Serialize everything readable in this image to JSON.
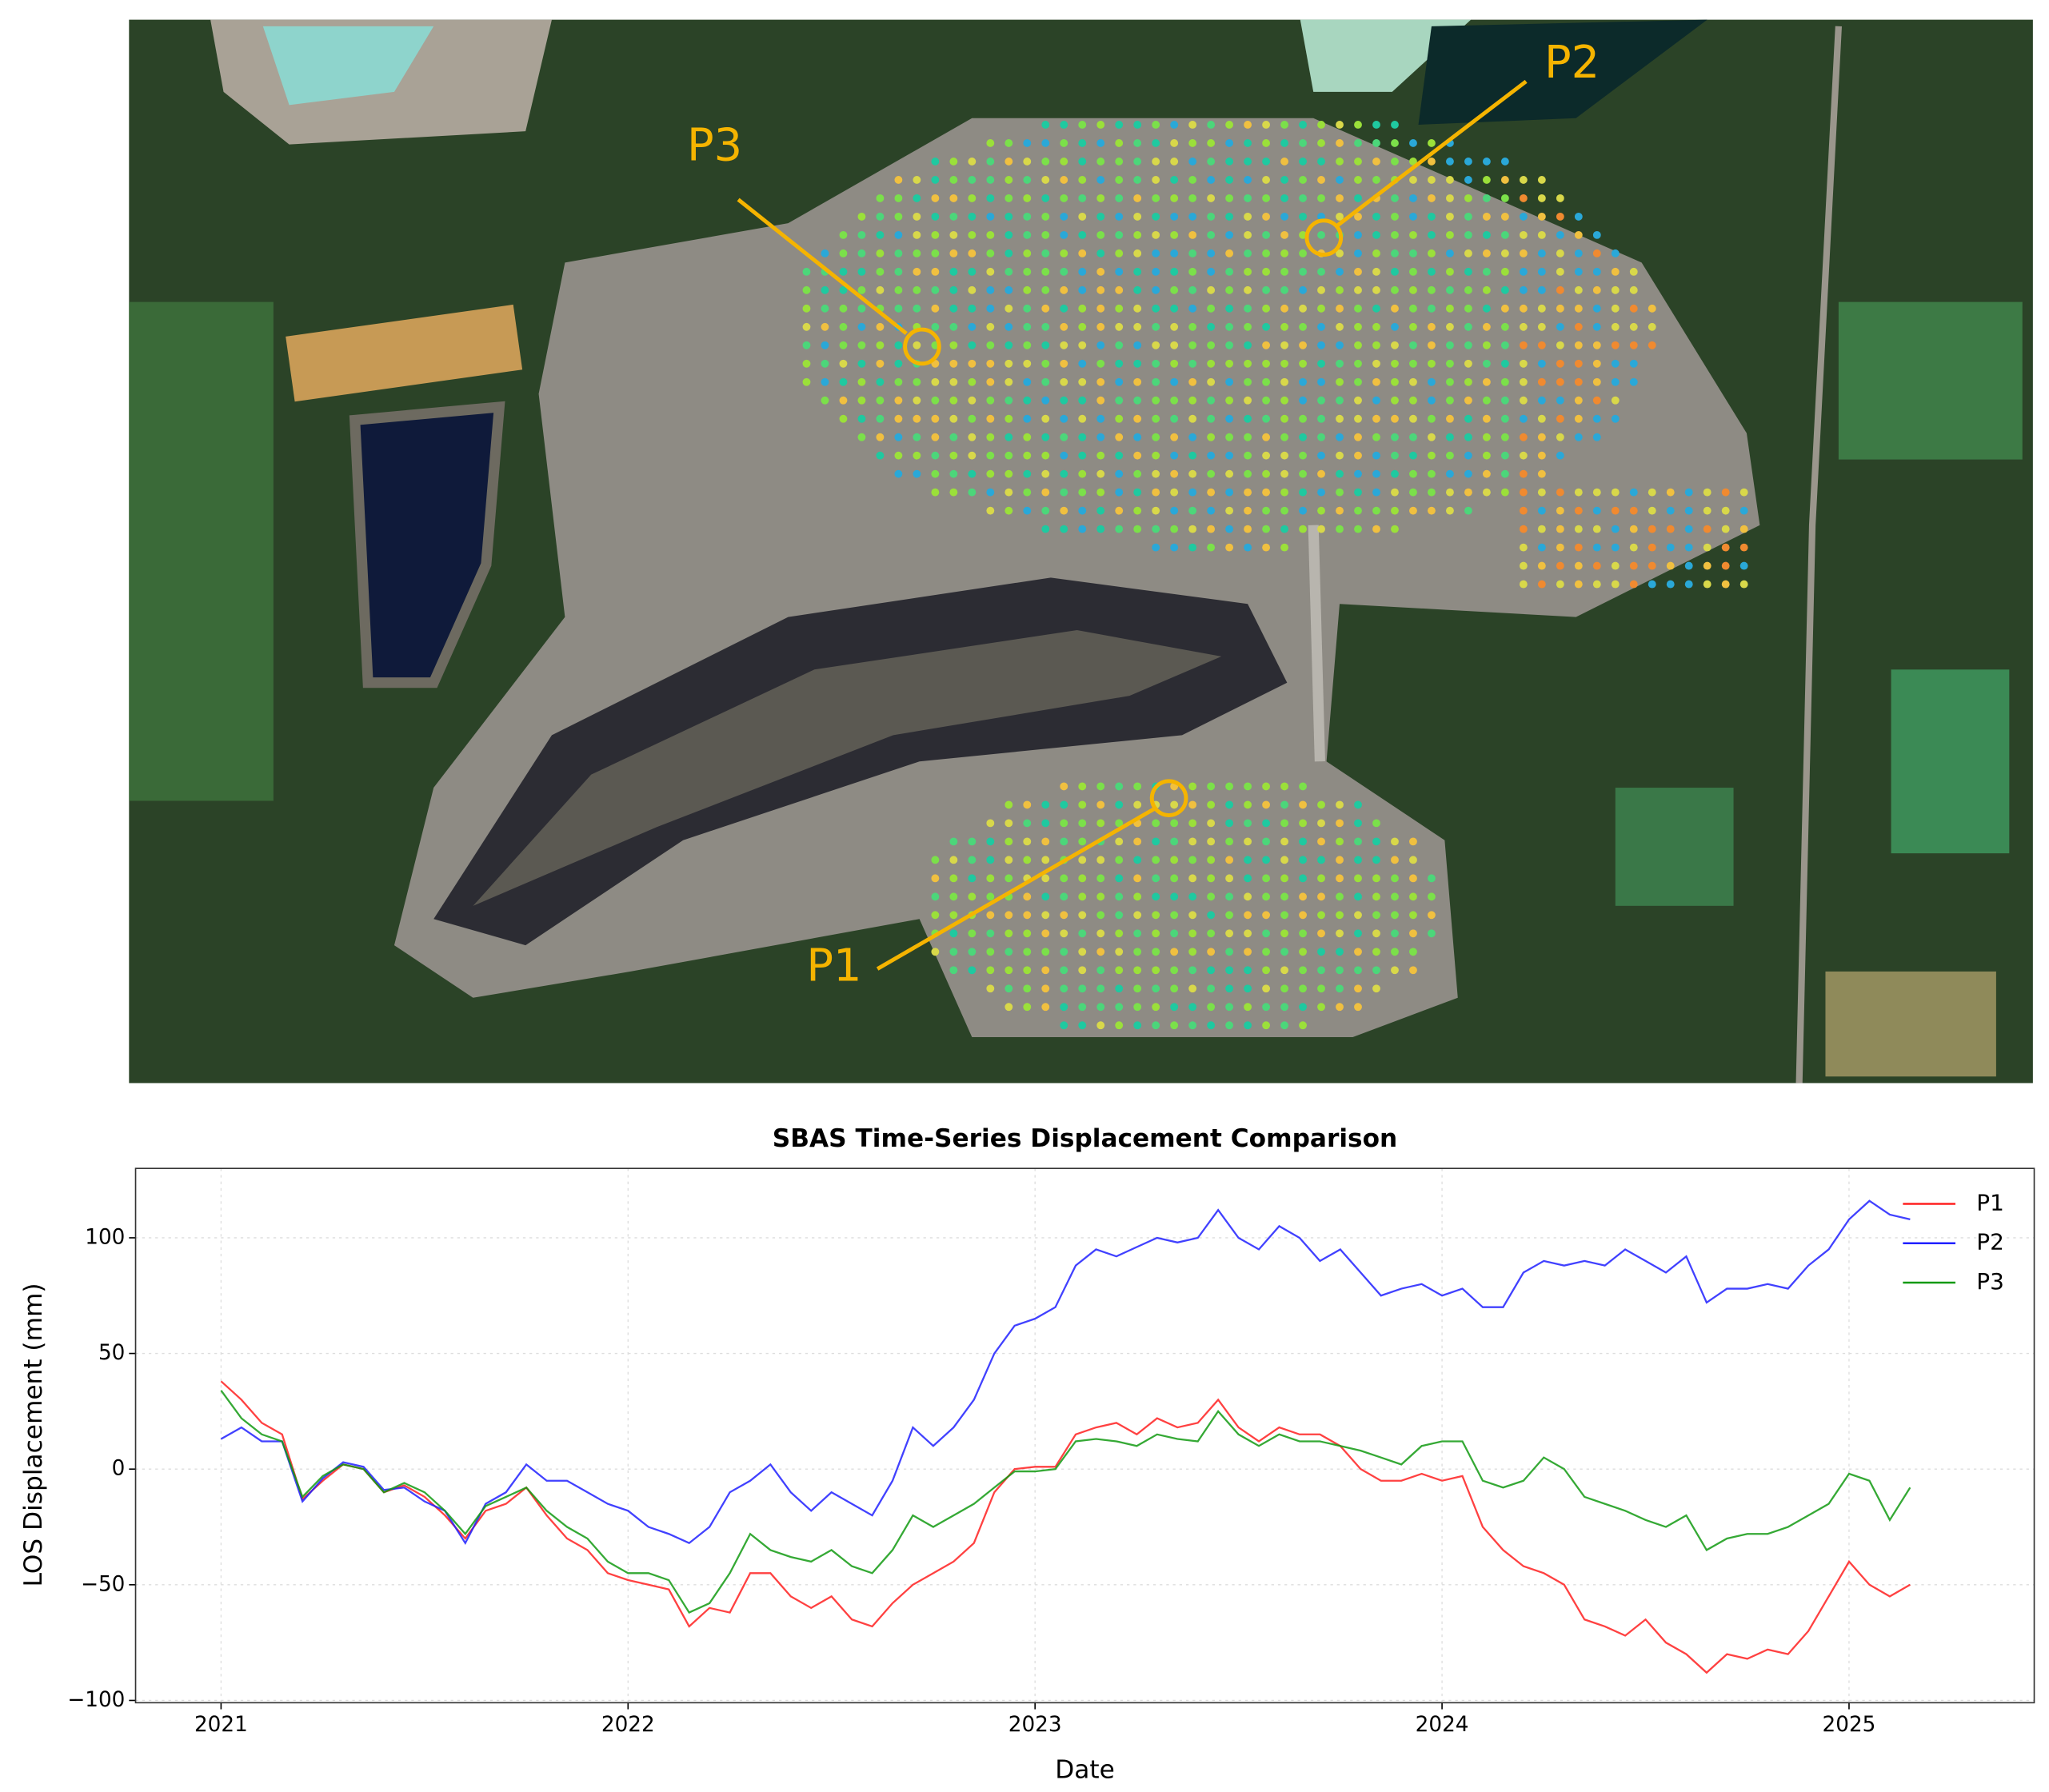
{
  "image_annotations": [
    "P1",
    "P2",
    "P3"
  ],
  "chart_data": {
    "type": "line",
    "title": "SBAS Time-Series Displacement Comparison",
    "x_label": "Date",
    "y_label": "LOS Displacement (mm)",
    "x": [
      2021.0,
      2021.05,
      2021.1,
      2021.15,
      2021.2,
      2021.25,
      2021.3,
      2021.35,
      2021.4,
      2021.45,
      2021.5,
      2021.55,
      2021.6,
      2021.65,
      2021.7,
      2021.75,
      2021.8,
      2021.85,
      2021.9,
      2021.95,
      2022.0,
      2022.05,
      2022.1,
      2022.15,
      2022.2,
      2022.25,
      2022.3,
      2022.35,
      2022.4,
      2022.45,
      2022.5,
      2022.55,
      2022.6,
      2022.65,
      2022.7,
      2022.75,
      2022.8,
      2022.85,
      2022.9,
      2022.95,
      2023.0,
      2023.05,
      2023.1,
      2023.15,
      2023.2,
      2023.25,
      2023.3,
      2023.35,
      2023.4,
      2023.45,
      2023.5,
      2023.55,
      2023.6,
      2023.65,
      2023.7,
      2023.75,
      2023.8,
      2023.85,
      2023.9,
      2023.95,
      2024.0,
      2024.05,
      2024.1,
      2024.15,
      2024.2,
      2024.25,
      2024.3,
      2024.35,
      2024.4,
      2024.45,
      2024.5,
      2024.55,
      2024.6,
      2024.65,
      2024.7,
      2024.75,
      2024.8,
      2024.85,
      2024.9,
      2024.95,
      2025.0,
      2025.05,
      2025.1,
      2025.15
    ],
    "series": [
      {
        "name": "P1",
        "color": "#ff2020",
        "values": [
          38,
          30,
          20,
          15,
          -13,
          -5,
          2,
          0,
          -10,
          -7,
          -12,
          -20,
          -30,
          -18,
          -15,
          -8,
          -20,
          -30,
          -35,
          -45,
          -48,
          -50,
          -52,
          -68,
          -60,
          -62,
          -45,
          -45,
          -55,
          -60,
          -55,
          -65,
          -68,
          -58,
          -50,
          -45,
          -40,
          -32,
          -10,
          0,
          1,
          1,
          15,
          18,
          20,
          15,
          22,
          18,
          20,
          30,
          18,
          12,
          18,
          15,
          15,
          10,
          0,
          -5,
          -5,
          -2,
          -5,
          -3,
          -25,
          -35,
          -42,
          -45,
          -50,
          -65,
          -68,
          -72,
          -65,
          -75,
          -80,
          -88,
          -80,
          -82,
          -78,
          -80,
          -70,
          -55,
          -40,
          -50,
          -55,
          -50
        ]
      },
      {
        "name": "P2",
        "color": "#2020ff",
        "values": [
          13,
          18,
          12,
          12,
          -14,
          -4,
          3,
          1,
          -9,
          -8,
          -14,
          -18,
          -32,
          -15,
          -10,
          2,
          -5,
          -5,
          -10,
          -15,
          -18,
          -25,
          -28,
          -32,
          -25,
          -10,
          -5,
          2,
          -10,
          -18,
          -10,
          -15,
          -20,
          -5,
          18,
          10,
          18,
          30,
          50,
          62,
          65,
          70,
          88,
          95,
          92,
          96,
          100,
          98,
          100,
          112,
          100,
          95,
          105,
          100,
          90,
          95,
          85,
          75,
          78,
          80,
          75,
          78,
          70,
          70,
          85,
          90,
          88,
          90,
          88,
          95,
          90,
          85,
          92,
          72,
          78,
          78,
          80,
          78,
          88,
          95,
          108,
          116,
          110,
          108
        ]
      },
      {
        "name": "P3",
        "color": "#129a12",
        "values": [
          34,
          22,
          15,
          12,
          -12,
          -3,
          2,
          0,
          -10,
          -6,
          -10,
          -18,
          -28,
          -16,
          -12,
          -8,
          -18,
          -25,
          -30,
          -40,
          -45,
          -45,
          -48,
          -62,
          -58,
          -45,
          -28,
          -35,
          -38,
          -40,
          -35,
          -42,
          -45,
          -35,
          -20,
          -25,
          -20,
          -15,
          -8,
          -1,
          -1,
          0,
          12,
          13,
          12,
          10,
          15,
          13,
          12,
          25,
          15,
          10,
          15,
          12,
          12,
          10,
          8,
          5,
          2,
          10,
          12,
          12,
          -5,
          -8,
          -5,
          5,
          0,
          -12,
          -15,
          -18,
          -22,
          -25,
          -20,
          -35,
          -30,
          -28,
          -28,
          -25,
          -20,
          -15,
          -2,
          -5,
          -22,
          -8
        ]
      }
    ],
    "xlim": [
      2020.79,
      2025.455
    ],
    "xticks": [
      2021,
      2022,
      2023,
      2024,
      2025
    ],
    "ylim": [
      -101,
      130
    ],
    "yticks": [
      {
        "value": -100,
        "label": "−100"
      },
      {
        "value": -50,
        "label": "−50"
      },
      0,
      50,
      100
    ],
    "grid": true,
    "legend": "upper right"
  }
}
